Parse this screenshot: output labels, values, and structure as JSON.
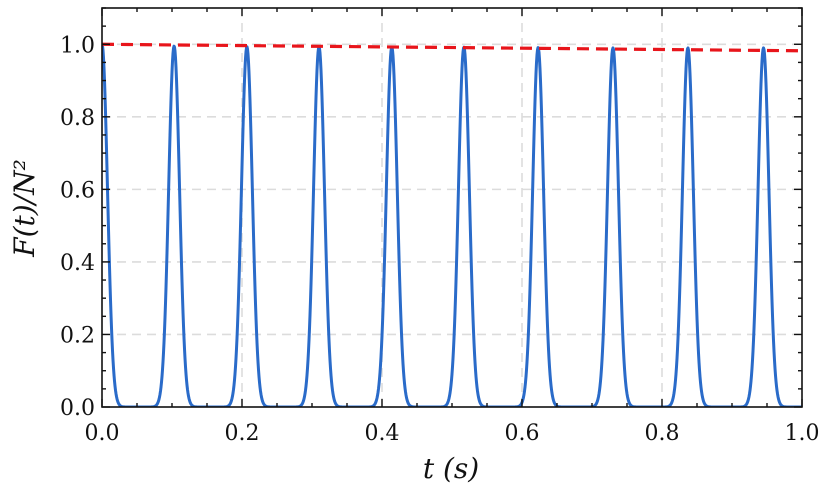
{
  "chart_data": {
    "type": "line",
    "title": "",
    "xlabel": "t (s)",
    "ylabel": "F(t)/N²",
    "xlim": [
      0.0,
      1.0
    ],
    "ylim": [
      0.0,
      1.1
    ],
    "x_ticks": [
      "0.0",
      "0.2",
      "0.4",
      "0.6",
      "0.8",
      "1.0"
    ],
    "y_ticks": [
      "0.0",
      "0.2",
      "0.4",
      "0.6",
      "0.8",
      "1.0"
    ],
    "grid": true,
    "legend": "none",
    "series": [
      {
        "style": "solid",
        "color": "#2a6bc9",
        "peak_times": [
          0.0,
          0.103,
          0.207,
          0.31,
          0.414,
          0.517,
          0.623,
          0.73,
          0.837,
          0.945
        ],
        "peak_values": [
          1.0,
          0.995,
          0.993,
          0.993,
          0.992,
          0.992,
          0.991,
          0.99,
          0.99,
          0.99
        ],
        "peak_half_width": 0.011
      },
      {
        "style": "dashed",
        "color": "#e8151b",
        "x": [
          0.0,
          1.0
        ],
        "y": [
          1.0,
          0.982
        ]
      }
    ]
  }
}
